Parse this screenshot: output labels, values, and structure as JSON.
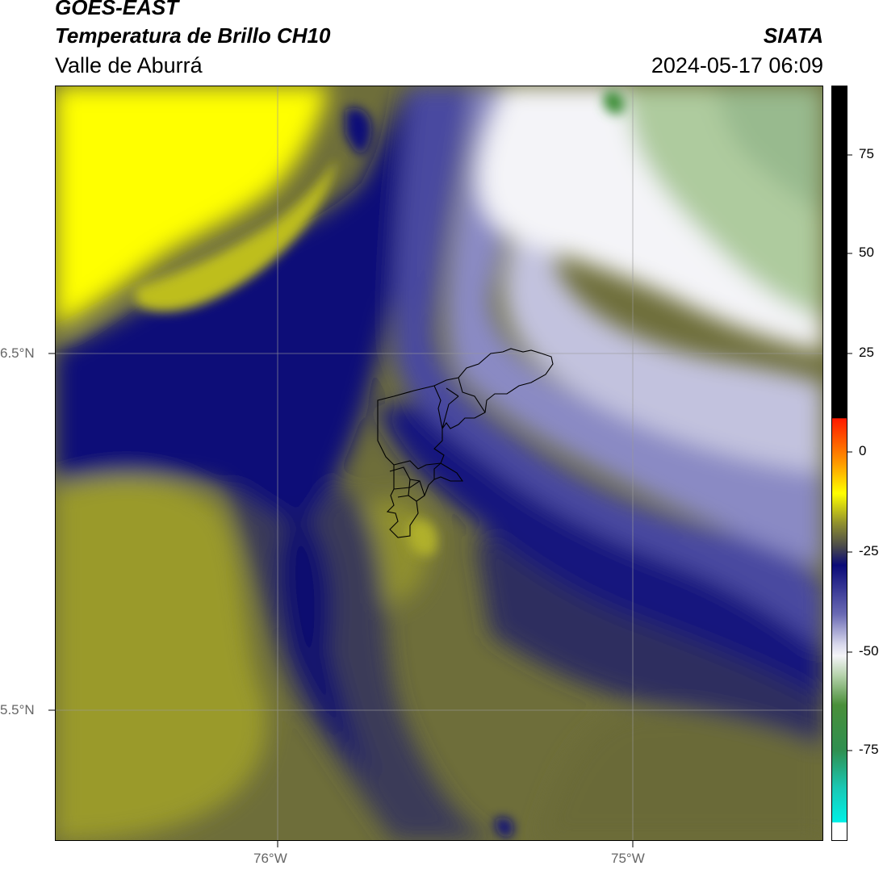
{
  "header": {
    "title_line1": "GOES-EAST",
    "title_line2": "Temperatura de Brillo CH10",
    "subtitle": "Valle de Aburrá",
    "agency": "SIATA",
    "datetime": "2024-05-17 06:09"
  },
  "map": {
    "x_ticks": [
      "76°W",
      "75°W"
    ],
    "y_ticks": [
      "6.5°N",
      "5.5°N"
    ],
    "gridlines": true,
    "overlay": "municipal boundaries outline"
  },
  "colorbar": {
    "ticks": [
      "75",
      "50",
      "25",
      "0",
      "-25",
      "-50",
      "-75"
    ],
    "colors": {
      "cyan": "#19e6d2",
      "green": "#2e8b3a",
      "white": "#f4f4f8",
      "lavender": "#aaaad2",
      "navy": "#0a0a78",
      "olive": "#4a4a30",
      "yellow": "#ffff00",
      "orange": "#ffa500",
      "red": "#ff0000",
      "black": "#000000"
    }
  }
}
